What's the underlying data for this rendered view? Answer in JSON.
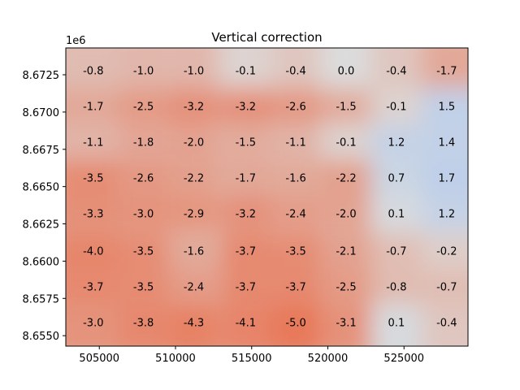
{
  "chart_data": {
    "type": "heatmap",
    "title": "Vertical correction",
    "xlabel": "",
    "ylabel": "",
    "y_offset_label": "1e6",
    "xlim": [
      502800,
      529200
    ],
    "ylim": [
      8654300,
      8674300
    ],
    "x_ticks": [
      {
        "value": 505000,
        "label": "505000"
      },
      {
        "value": 510000,
        "label": "510000"
      },
      {
        "value": 515000,
        "label": "515000"
      },
      {
        "value": 520000,
        "label": "520000"
      },
      {
        "value": 525000,
        "label": "525000"
      }
    ],
    "y_ticks": [
      {
        "value": 8655000,
        "label": "8.6550"
      },
      {
        "value": 8657500,
        "label": "8.6575"
      },
      {
        "value": 8660000,
        "label": "8.6600"
      },
      {
        "value": 8662500,
        "label": "8.6625"
      },
      {
        "value": 8665000,
        "label": "8.6650"
      },
      {
        "value": 8667500,
        "label": "8.6675"
      },
      {
        "value": 8670000,
        "label": "8.6700"
      },
      {
        "value": 8672500,
        "label": "8.6725"
      }
    ],
    "colormap": {
      "negative": "#e8795a",
      "neutral": "#dcdcdc",
      "positive": "#aec8f0",
      "vmin": -5.0,
      "vmax": 5.0
    },
    "x": [
      504600,
      507900,
      511200,
      514600,
      517900,
      521200,
      524500,
      527800
    ],
    "y": [
      8672800,
      8670400,
      8668000,
      8665600,
      8663200,
      8660700,
      8658300,
      8655900
    ],
    "labels": [
      [
        "-0.8",
        "-1.0",
        "-1.0",
        "-0.1",
        "-0.4",
        "0.0",
        "-0.4",
        "-1.7"
      ],
      [
        "-1.7",
        "-2.5",
        "-3.2",
        "-3.2",
        "-2.6",
        "-1.5",
        "-0.1",
        "1.5"
      ],
      [
        "-1.1",
        "-1.8",
        "-2.0",
        "-1.5",
        "-1.1",
        "-0.1",
        "1.2",
        "1.4"
      ],
      [
        "-3.5",
        "-2.6",
        "-2.2",
        "-1.7",
        "-1.6",
        "-2.2",
        "0.7",
        "1.7"
      ],
      [
        "-3.3",
        "-3.0",
        "-2.9",
        "-3.2",
        "-2.4",
        "-2.0",
        "0.1",
        "1.2"
      ],
      [
        "-4.0",
        "-3.5",
        "-1.6",
        "-3.7",
        "-3.5",
        "-2.1",
        "-0.7",
        "-0.2"
      ],
      [
        "-3.7",
        "-3.5",
        "-2.4",
        "-3.7",
        "-3.7",
        "-2.5",
        "-0.8",
        "-0.7"
      ],
      [
        "-3.0",
        "-3.8",
        "-4.3",
        "-4.1",
        "-5.0",
        "-3.1",
        "0.1",
        "-0.4"
      ]
    ]
  }
}
